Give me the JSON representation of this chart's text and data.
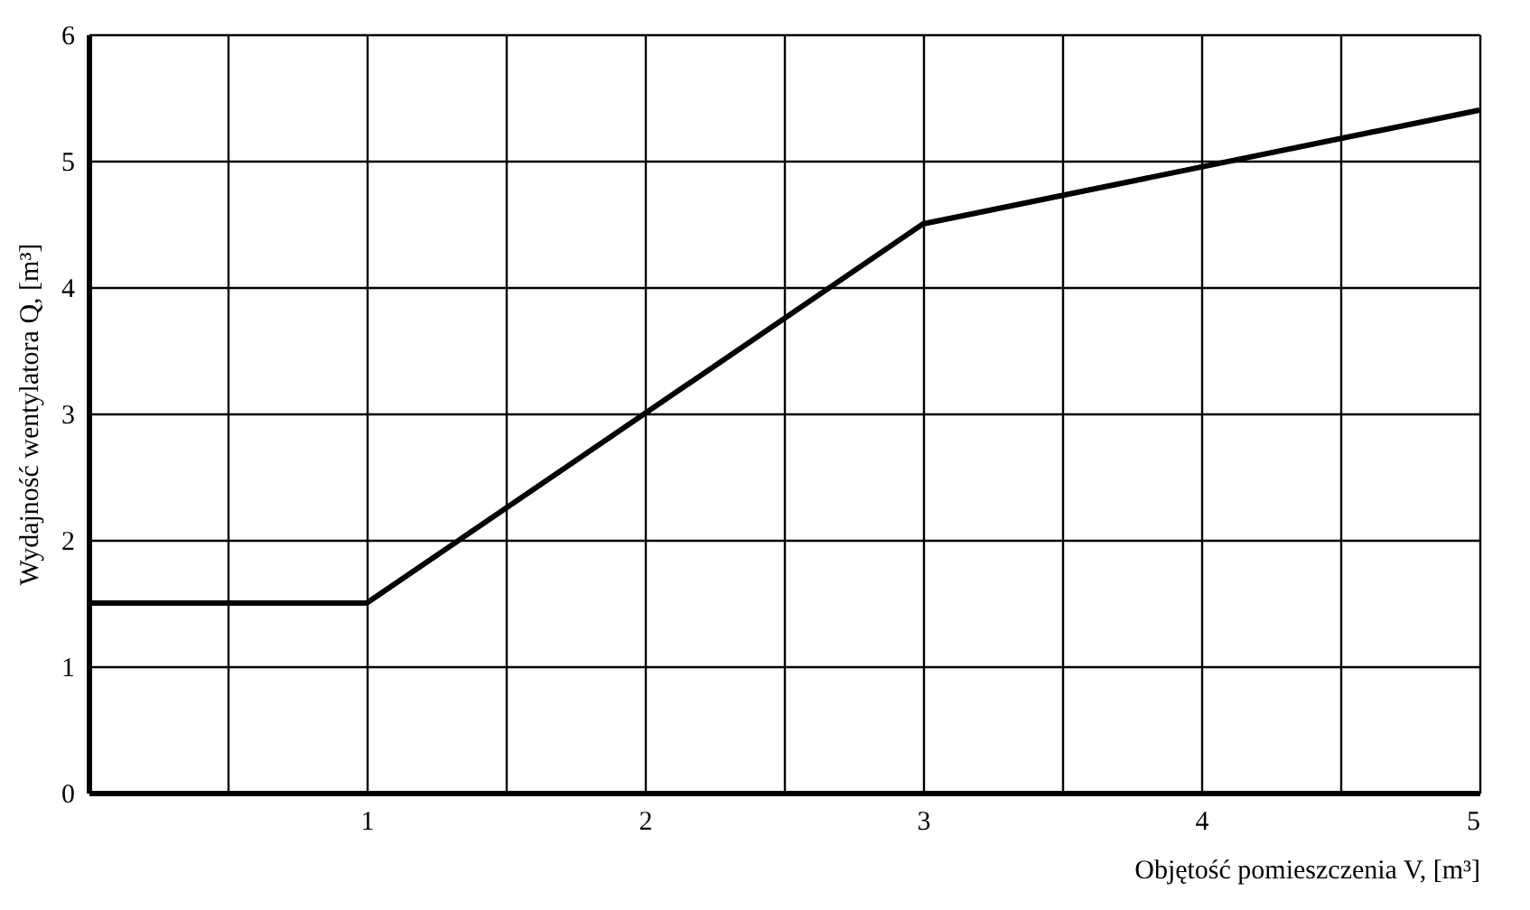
{
  "chart_data": {
    "type": "line",
    "xlabel": "Objętość pomieszczenia V, [m³]",
    "ylabel": "Wydajność wentylatora Q, [m³]",
    "x": [
      0,
      1,
      3,
      5
    ],
    "series": [
      {
        "color": "#000000",
        "values": [
          1.5,
          1.5,
          4.5,
          5.4
        ]
      }
    ],
    "xlim": [
      0,
      5
    ],
    "ylim": [
      0,
      6
    ],
    "xticks": [
      {
        "value": 0.5,
        "label": null
      },
      1,
      {
        "value": 1.5,
        "label": null
      },
      2,
      {
        "value": 2.5,
        "label": null
      },
      3,
      {
        "value": 3.5,
        "label": null
      },
      4,
      {
        "value": 4.5,
        "label": null
      },
      5
    ],
    "yticks": [
      0,
      1,
      2,
      3,
      4,
      5,
      6
    ],
    "grid": true,
    "marker": "none",
    "line_style": "solid"
  }
}
